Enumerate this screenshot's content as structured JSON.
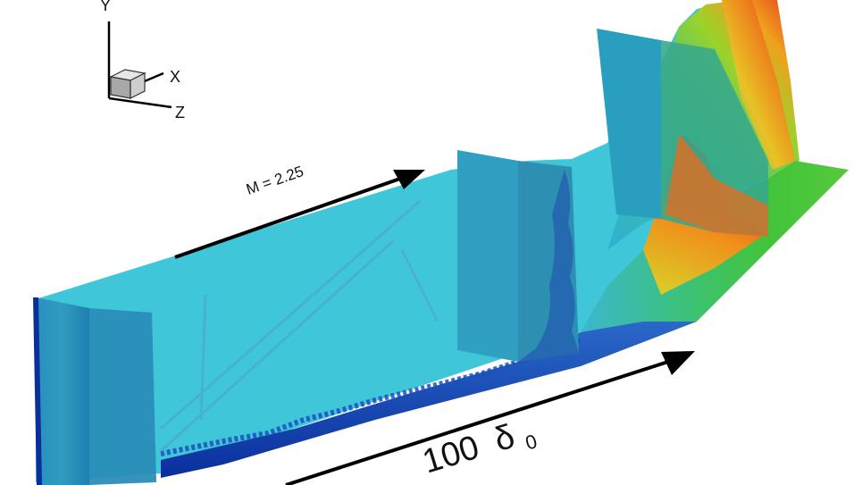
{
  "axes": {
    "y_label": "Y",
    "x_label": "X",
    "z_label": "Z"
  },
  "flow": {
    "mach_label": "M = 2.25"
  },
  "scale": {
    "length_value": "100",
    "length_symbol": "δ",
    "length_subscript": "0"
  },
  "colors": {
    "freestream": "#3fc6d8",
    "boundary_layer": "#0a2fa0",
    "hot": "#e3331f",
    "mid": "#37c24a",
    "arrow": "#000000"
  }
}
